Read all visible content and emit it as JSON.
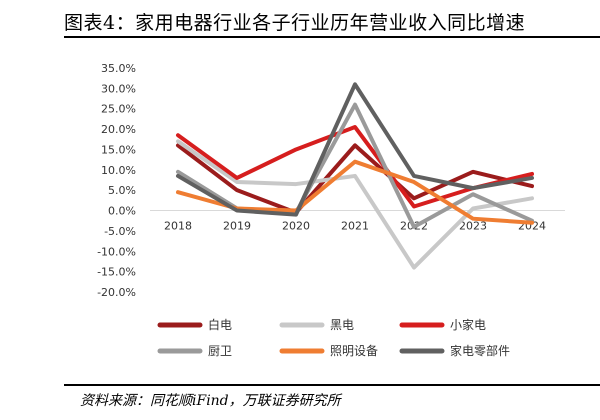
{
  "title": "图表4：家用电器行业各子行业历年营业收入同比增速",
  "source": "资料来源：同花顺iFind，万联证券研究所",
  "chart_data": {
    "type": "line",
    "x": [
      "2018",
      "2019",
      "2020",
      "2021",
      "2022",
      "2023",
      "2024"
    ],
    "ylim": [
      -20,
      35
    ],
    "yticks": [
      35,
      30,
      25,
      20,
      15,
      10,
      5,
      0,
      -5,
      -10,
      -15,
      -20
    ],
    "ytick_labels": [
      "35.0%",
      "30.0%",
      "25.0%",
      "20.0%",
      "15.0%",
      "10.0%",
      "5.0%",
      "0.0%",
      "-5.0%",
      "-10.0%",
      "-15.0%",
      "-20.0%"
    ],
    "grid": false,
    "legend_position": "bottom",
    "series": [
      {
        "name": "白电",
        "color": "#9b1c1c",
        "values": [
          16,
          5,
          -0.5,
          16,
          3,
          9.5,
          6
        ]
      },
      {
        "name": "黑电",
        "color": "#c8c8c8",
        "values": [
          17,
          7,
          6.5,
          8.5,
          -14,
          0.5,
          3
        ]
      },
      {
        "name": "小家电",
        "color": "#d61e1e",
        "values": [
          18.5,
          8,
          15,
          20.5,
          1,
          5.5,
          9
        ]
      },
      {
        "name": "厨卫",
        "color": "#9a9a9a",
        "values": [
          9.5,
          0.5,
          -0.5,
          26,
          -4,
          4,
          -2.5
        ]
      },
      {
        "name": "照明设备",
        "color": "#ef7d32",
        "values": [
          4.5,
          0.5,
          0,
          12,
          7,
          -2,
          -3
        ]
      },
      {
        "name": "家电零部件",
        "color": "#606060",
        "values": [
          8.5,
          0,
          -1,
          31,
          8.5,
          5.5,
          8
        ]
      }
    ]
  }
}
